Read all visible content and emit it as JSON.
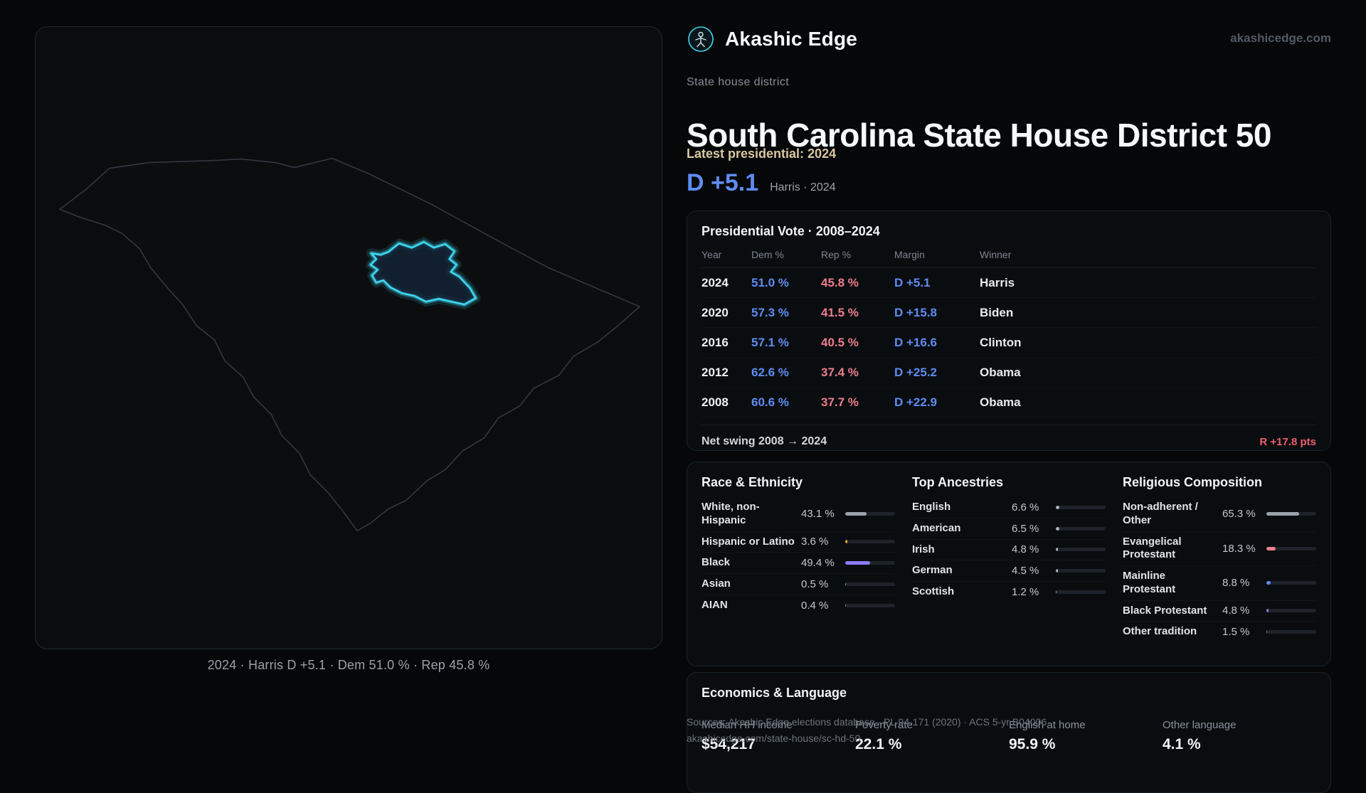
{
  "colors": {
    "accent": "#3dd5ee",
    "dem": "#5e8cf2",
    "rep": "#ef7e8e",
    "swing_r": "#ee5f6e"
  },
  "map": {
    "caption": "2024 · Harris D +5.1 · Dem 51.0 % · Rep 45.8 %"
  },
  "header": {
    "brand": "Akashic Edge",
    "site": "akashicedge.com",
    "kicker": "State house district",
    "title": "South Carolina State House District 50",
    "latest_label": "Latest presidential: 2024",
    "margin": "D +5.1",
    "margin_note": "Harris · 2024"
  },
  "presidential": {
    "title": "Presidential Vote · 2008–2024",
    "columns": [
      "Year",
      "Dem %",
      "Rep %",
      "Margin",
      "Winner"
    ],
    "rows": [
      {
        "year": "2024",
        "dem": "51.0 %",
        "rep": "45.8 %",
        "margin": "D +5.1",
        "winner": "Harris"
      },
      {
        "year": "2020",
        "dem": "57.3 %",
        "rep": "41.5 %",
        "margin": "D +15.8",
        "winner": "Biden"
      },
      {
        "year": "2016",
        "dem": "57.1 %",
        "rep": "40.5 %",
        "margin": "D +16.6",
        "winner": "Clinton"
      },
      {
        "year": "2012",
        "dem": "62.6 %",
        "rep": "37.4 %",
        "margin": "D +25.2",
        "winner": "Obama"
      },
      {
        "year": "2008",
        "dem": "60.6 %",
        "rep": "37.7 %",
        "margin": "D +22.9",
        "winner": "Obama"
      }
    ],
    "footer_label": "Net swing 2008 → 2024",
    "footer_value": "R +17.8 pts"
  },
  "race": {
    "title": "Race & Ethnicity",
    "rows": [
      {
        "label": "White, non-Hispanic",
        "value": "43.1 %",
        "pct": 43.1,
        "color": "#9aa3ad"
      },
      {
        "label": "Hispanic or Latino",
        "value": "3.6 %",
        "pct": 3.6,
        "color": "#e5a23c"
      },
      {
        "label": "Black",
        "value": "49.4 %",
        "pct": 49.4,
        "color": "#8b7cf6"
      },
      {
        "label": "Asian",
        "value": "0.5 %",
        "pct": 0.5,
        "color": "#34d399"
      },
      {
        "label": "AIAN",
        "value": "0.4 %",
        "pct": 0.4,
        "color": "#e07a3f"
      }
    ]
  },
  "ancestries": {
    "title": "Top Ancestries",
    "rows": [
      {
        "label": "English",
        "value": "6.6 %",
        "pct": 6.6,
        "color": "#aab2bc"
      },
      {
        "label": "American",
        "value": "6.5 %",
        "pct": 6.5,
        "color": "#aab2bc"
      },
      {
        "label": "Irish",
        "value": "4.8 %",
        "pct": 4.8,
        "color": "#aab2bc"
      },
      {
        "label": "German",
        "value": "4.5 %",
        "pct": 4.5,
        "color": "#aab2bc"
      },
      {
        "label": "Scottish",
        "value": "1.2 %",
        "pct": 1.2,
        "color": "#aab2bc"
      }
    ]
  },
  "religion": {
    "title": "Religious Composition",
    "rows": [
      {
        "label": "Non-adherent / Other",
        "value": "65.3 %",
        "pct": 65.3,
        "color": "#9aa3ad"
      },
      {
        "label": "Evangelical Protestant",
        "value": "18.3 %",
        "pct": 18.3,
        "color": "#ef7e8e"
      },
      {
        "label": "Mainline Protestant",
        "value": "8.8 %",
        "pct": 8.8,
        "color": "#5e8cf2"
      },
      {
        "label": "Black Protestant",
        "value": "4.8 %",
        "pct": 4.8,
        "color": "#8b7cf6"
      },
      {
        "label": "Other tradition",
        "value": "1.5 %",
        "pct": 1.5,
        "color": "#9aa3ad"
      }
    ]
  },
  "economics": {
    "title": "Economics & Language",
    "stats": [
      {
        "label": "Median HH income",
        "value": "$54,217"
      },
      {
        "label": "Poverty rate",
        "value": "22.1 %"
      },
      {
        "label": "English at home",
        "value": "95.9 %"
      },
      {
        "label": "Other language",
        "value": "4.1 %"
      }
    ]
  },
  "footer": {
    "sources": "Sources: Akashic Edge elections database · PL 94-171 (2020) · ACS 5-yr B04006",
    "permalink": "akashicedge.com/state-house/sc-hd-50"
  }
}
